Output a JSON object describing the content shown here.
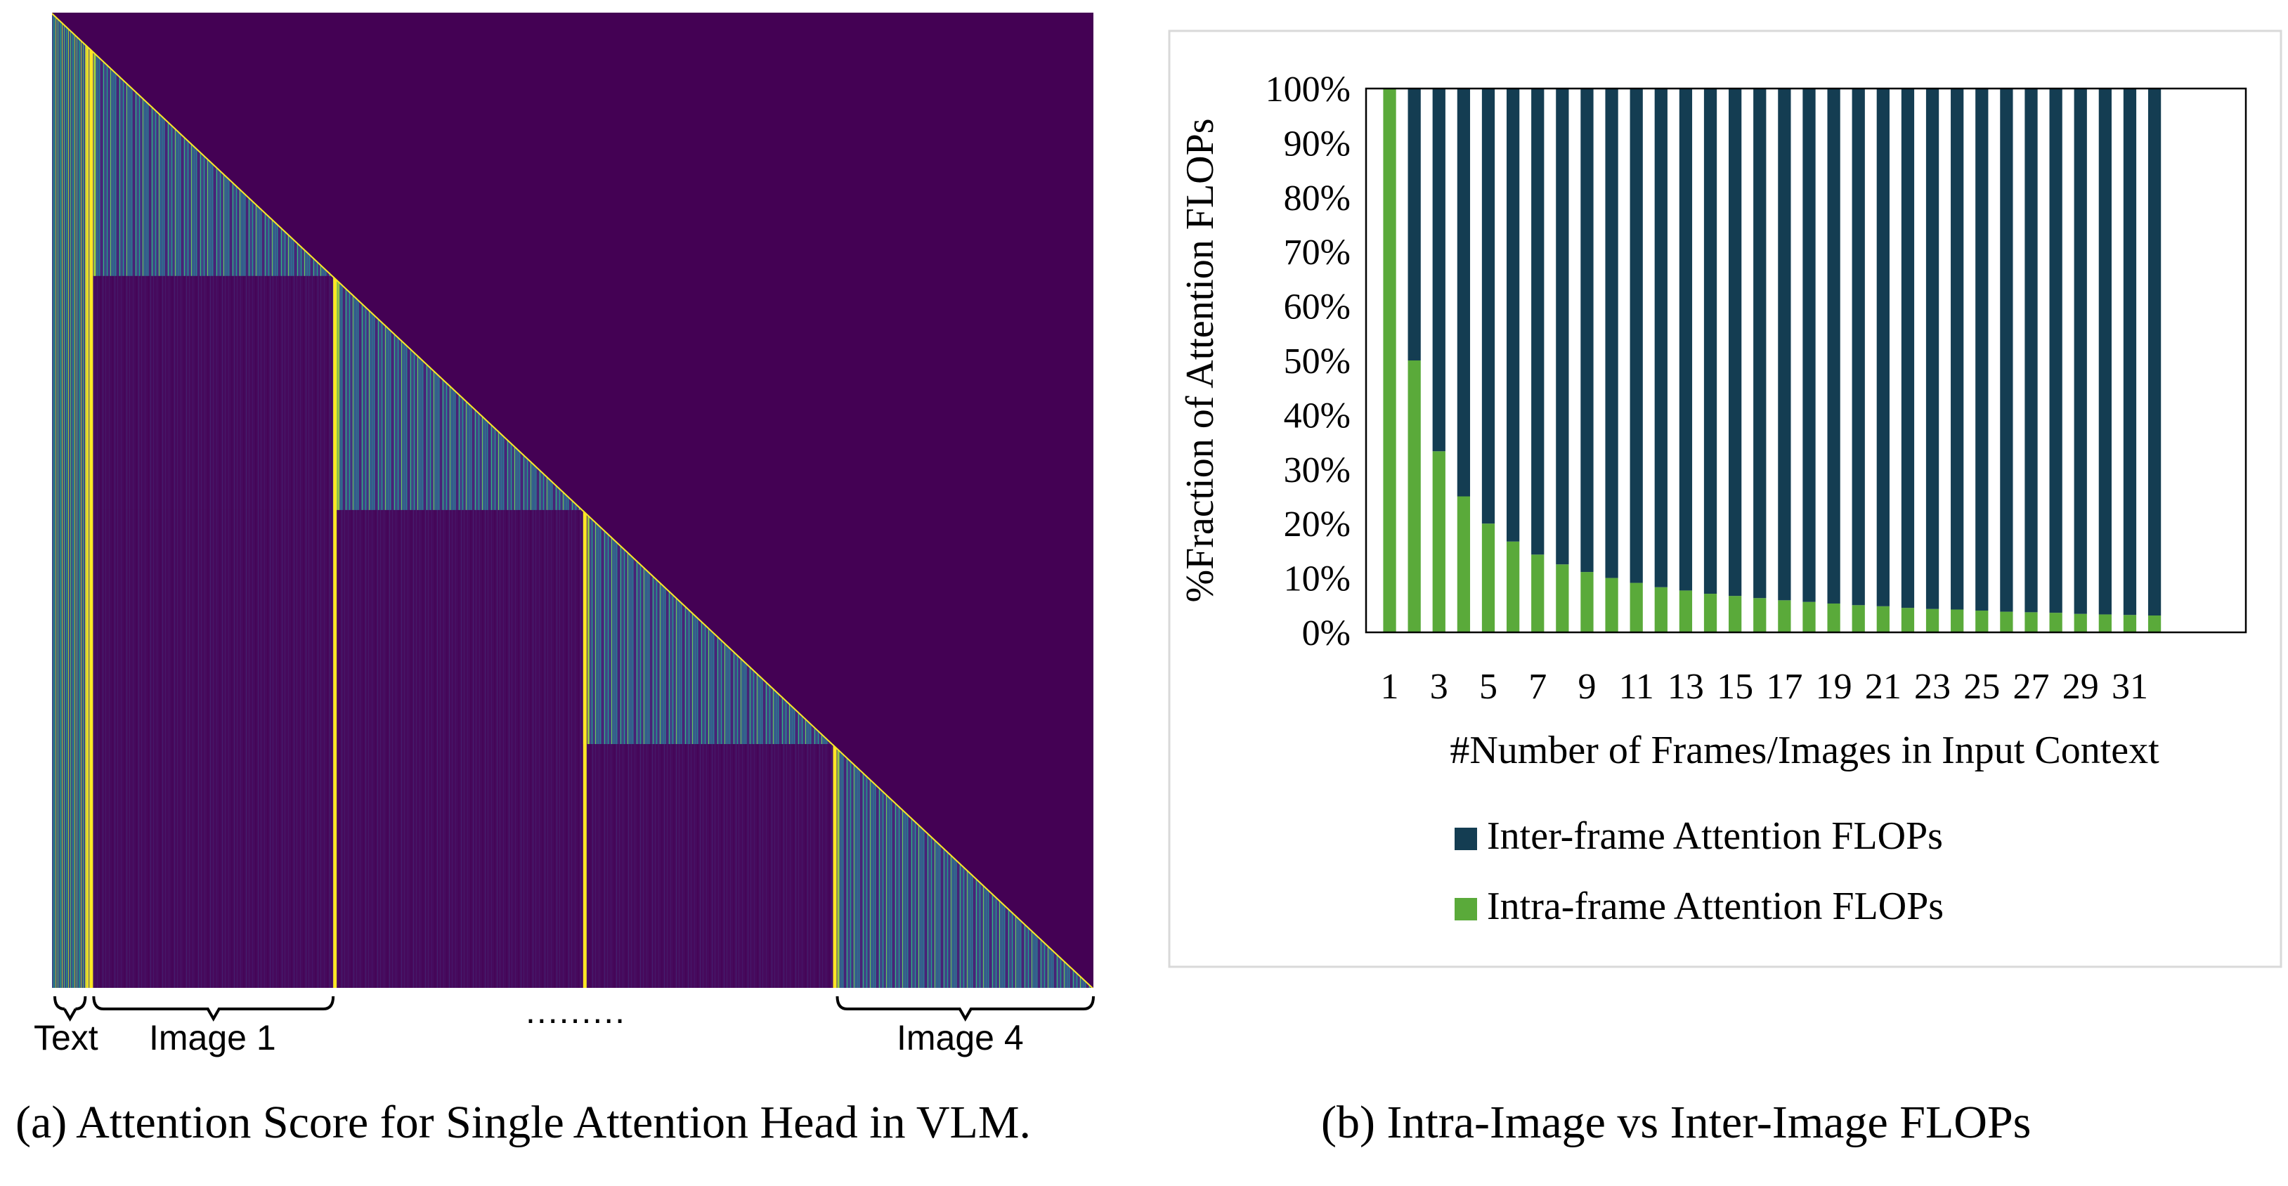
{
  "panel_a": {
    "caption": "(a) Attention Score for Single Attention Head in VLM.",
    "labels": {
      "text": "Text",
      "image1": "Image 1",
      "ellipsis": ".........",
      "image4": "Image 4"
    },
    "colors": {
      "background": "#440154",
      "bright": "#fde725",
      "mid": "#3b528b",
      "teal": "#21918c"
    }
  },
  "panel_b": {
    "caption": "(b) Intra-Image vs Inter-Image FLOPs"
  },
  "chart_data": [
    {
      "type": "heatmap",
      "title": "",
      "description_labels": [
        "Text",
        "Image 1",
        ".........",
        "Image 4"
      ],
      "blocks": [
        "Text",
        "Image 1",
        "Image 2",
        "Image 3",
        "Image 4"
      ],
      "structure": "lower-triangular causal attention"
    },
    {
      "type": "bar",
      "stacked": true,
      "percent": true,
      "xlabel": "#Number of Frames/Images in Input Context",
      "ylabel": "%Fraction of Attention FLOPs",
      "ylim": [
        0,
        100
      ],
      "yticks": [
        "0%",
        "10%",
        "20%",
        "30%",
        "40%",
        "50%",
        "60%",
        "70%",
        "80%",
        "90%",
        "100%"
      ],
      "categories": [
        1,
        2,
        3,
        4,
        5,
        6,
        7,
        8,
        9,
        10,
        11,
        12,
        13,
        14,
        15,
        16,
        17,
        18,
        19,
        20,
        21,
        22,
        23,
        24,
        25,
        26,
        27,
        28,
        29,
        30,
        31,
        32
      ],
      "xtick_labels": [
        "1",
        "3",
        "5",
        "7",
        "9",
        "11",
        "13",
        "15",
        "17",
        "19",
        "21",
        "23",
        "25",
        "27",
        "29",
        "31"
      ],
      "series": [
        {
          "name": "Inter-frame Attention FLOPs",
          "color": "#143d52",
          "values": [
            0,
            50,
            66.7,
            75,
            80,
            83.3,
            85.7,
            87.5,
            88.9,
            90,
            90.9,
            91.7,
            92.3,
            92.9,
            93.3,
            93.8,
            94.1,
            94.4,
            94.7,
            95,
            95.2,
            95.5,
            95.7,
            95.8,
            96,
            96.2,
            96.3,
            96.4,
            96.6,
            96.7,
            96.8,
            96.9
          ]
        },
        {
          "name": "Intra-frame Attention FLOPs",
          "color": "#5aaa3a",
          "values": [
            100,
            50,
            33.3,
            25,
            20,
            16.7,
            14.3,
            12.5,
            11.1,
            10,
            9.1,
            8.3,
            7.7,
            7.1,
            6.7,
            6.3,
            5.9,
            5.6,
            5.3,
            5,
            4.8,
            4.5,
            4.3,
            4.2,
            4,
            3.8,
            3.7,
            3.6,
            3.4,
            3.3,
            3.2,
            3.1
          ]
        }
      ],
      "legend_position": "bottom",
      "grid": false
    }
  ]
}
